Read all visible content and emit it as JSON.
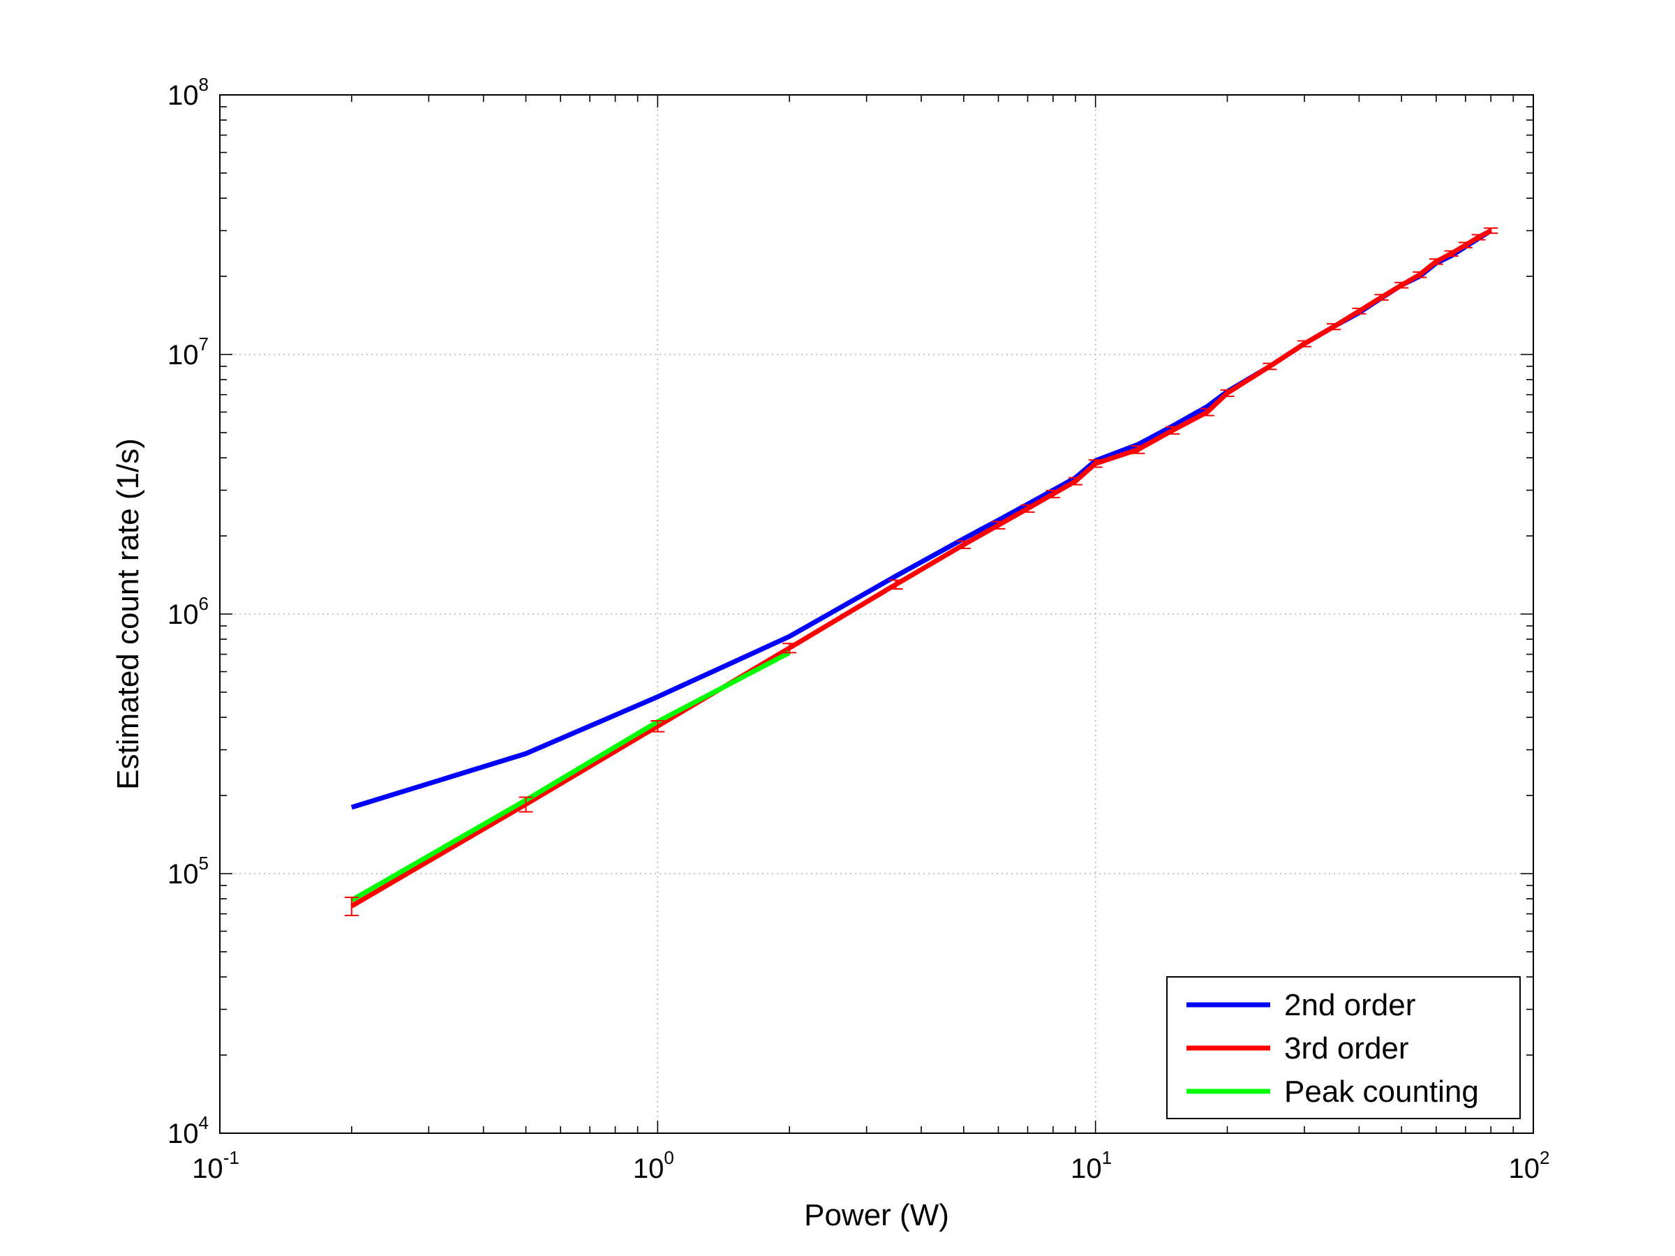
{
  "chart_data": {
    "type": "line",
    "title": "",
    "xlabel": "Power (W)",
    "ylabel": "Estimated count rate (1/s)",
    "xscale": "log",
    "yscale": "log",
    "xlim": [
      0.1,
      100
    ],
    "ylim": [
      10000,
      100000000
    ],
    "grid": true,
    "legend_position": "bottom-right",
    "x_ticks": [
      {
        "base": "10",
        "exp": "-1",
        "value": 0.1
      },
      {
        "base": "10",
        "exp": "0",
        "value": 1
      },
      {
        "base": "10",
        "exp": "1",
        "value": 10
      },
      {
        "base": "10",
        "exp": "2",
        "value": 100
      }
    ],
    "y_ticks": [
      {
        "base": "10",
        "exp": "4",
        "value": 10000
      },
      {
        "base": "10",
        "exp": "5",
        "value": 100000
      },
      {
        "base": "10",
        "exp": "6",
        "value": 1000000
      },
      {
        "base": "10",
        "exp": "7",
        "value": 10000000
      },
      {
        "base": "10",
        "exp": "8",
        "value": 100000000
      }
    ],
    "series": [
      {
        "name": "2nd order",
        "color": "#0000ff",
        "x": [
          0.2,
          0.5,
          1,
          2,
          3.5,
          5,
          6,
          7,
          8,
          9,
          10,
          12.5,
          15,
          18,
          20,
          25,
          30,
          35,
          40,
          45,
          50,
          55,
          60,
          65,
          70,
          75,
          80
        ],
        "y": [
          180000,
          290000,
          480000,
          820000,
          1400000,
          1950000,
          2300000,
          2650000,
          3000000,
          3350000,
          3900000,
          4500000,
          5300000,
          6300000,
          7200000,
          9000000,
          11000000,
          12800000,
          14500000,
          16500000,
          18500000,
          20000000,
          22500000,
          24000000,
          26000000,
          28000000,
          30000000
        ]
      },
      {
        "name": "3rd order",
        "color": "#ff0000",
        "x": [
          0.2,
          0.5,
          1,
          2,
          3.5,
          5,
          6,
          7,
          8,
          9,
          10,
          12.5,
          15,
          18,
          20,
          25,
          30,
          35,
          40,
          45,
          50,
          55,
          60,
          65,
          70,
          75,
          80
        ],
        "y": [
          75000,
          185000,
          370000,
          740000,
          1300000,
          1850000,
          2200000,
          2550000,
          2900000,
          3250000,
          3800000,
          4300000,
          5100000,
          6000000,
          7100000,
          9000000,
          11000000,
          12800000,
          14700000,
          16600000,
          18500000,
          20300000,
          22800000,
          24500000,
          26400000,
          28300000,
          30000000
        ],
        "error": [
          6000,
          12000,
          18000,
          30000,
          50000,
          60000,
          70000,
          80000,
          90000,
          100000,
          120000,
          140000,
          160000,
          180000,
          200000,
          240000,
          280000,
          320000,
          360000,
          400000,
          440000,
          480000,
          520000,
          560000,
          600000,
          640000,
          680000
        ]
      },
      {
        "name": "Peak counting",
        "color": "#00ff00",
        "x": [
          0.2,
          0.5,
          1,
          2
        ],
        "y": [
          79000,
          192000,
          385000,
          710000
        ]
      }
    ]
  }
}
